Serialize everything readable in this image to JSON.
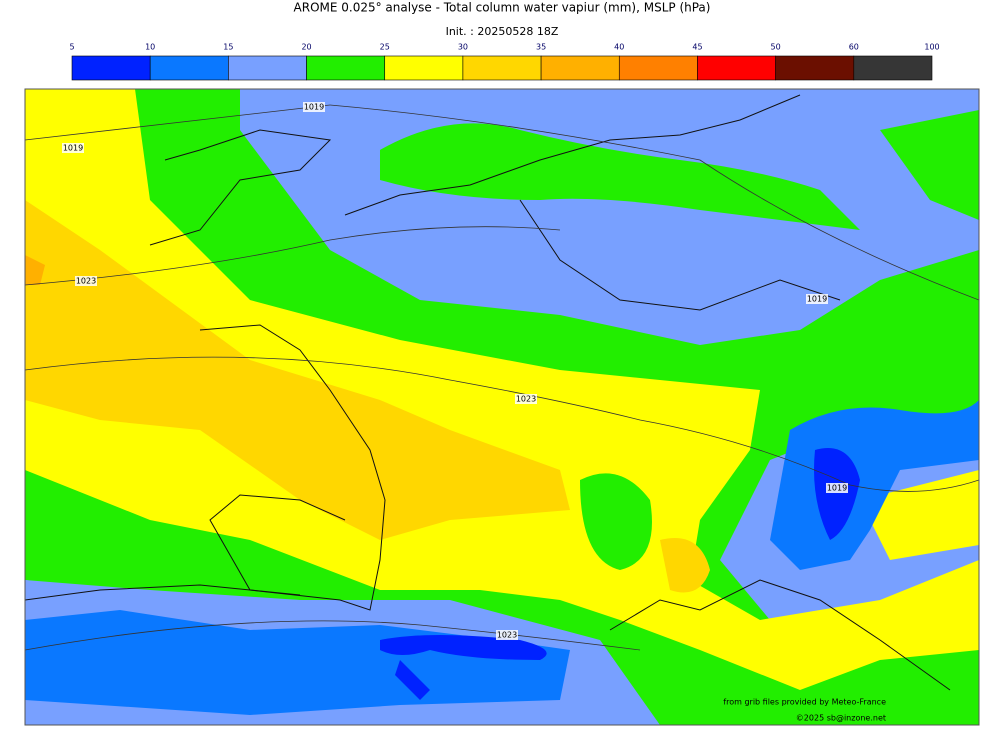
{
  "title": "AROME 0.025° analyse - Total column water vapiur (mm), MSLP (hPa)",
  "subtitle": "Init. : 20250528 18Z",
  "colorbar": {
    "ticks": [
      5,
      10,
      15,
      20,
      25,
      30,
      35,
      40,
      45,
      50,
      60,
      100
    ],
    "colors": [
      "#0022ff",
      "#0a78ff",
      "#78a0ff",
      "#22ee00",
      "#ffff00",
      "#ffd700",
      "#ffb000",
      "#ff8000",
      "#ff0000",
      "#6b0f00",
      "#363636"
    ]
  },
  "isobar_labels": [
    1019,
    1019,
    1023,
    1023,
    1019,
    1019,
    1023
  ],
  "credits": [
    "from grib files provided by Meteo-France",
    "©2025 sb@inzone.net"
  ]
}
